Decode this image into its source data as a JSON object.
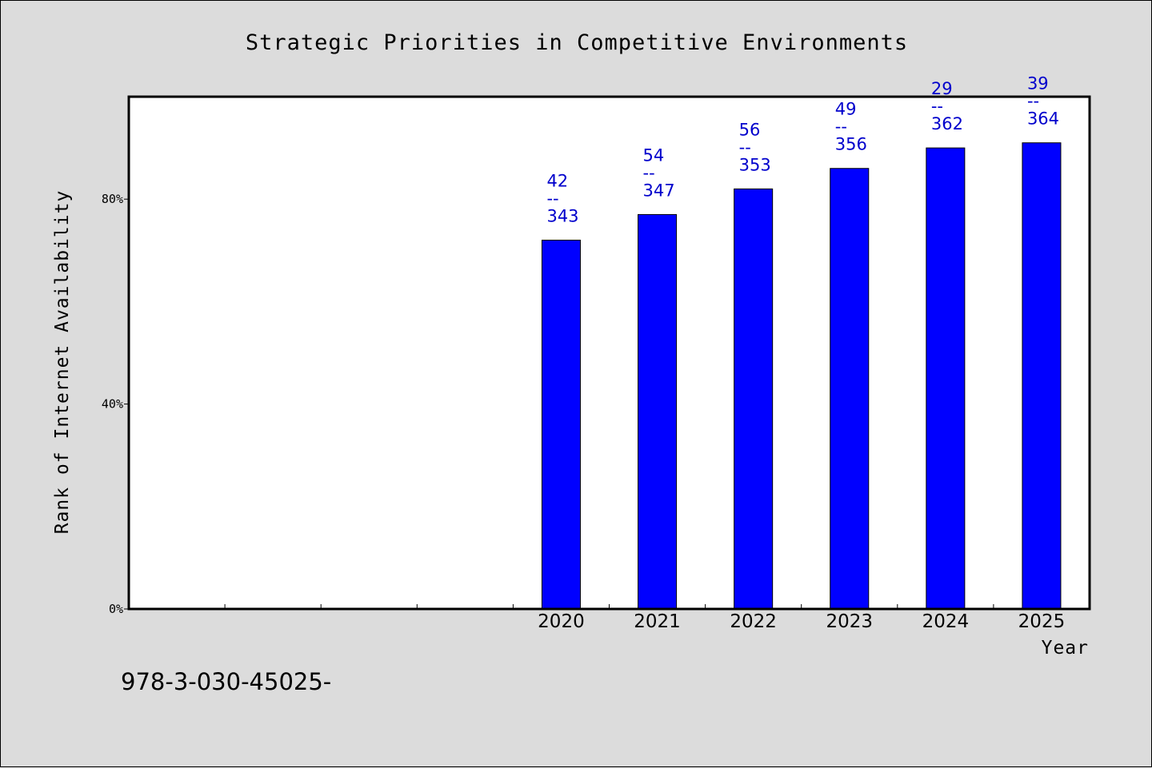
{
  "chart_data": {
    "type": "bar",
    "title": "Strategic Priorities in Competitive Environments",
    "xlabel": "Year",
    "ylabel": "Rank of Internet Availability",
    "categories": [
      "",
      "",
      "",
      "",
      "2020",
      "2021",
      "2022",
      "2023",
      "2024",
      "2025"
    ],
    "values": [
      null,
      null,
      null,
      null,
      72,
      77,
      82,
      86,
      90,
      91
    ],
    "data_labels": [
      null,
      null,
      null,
      null,
      {
        "top": "42",
        "mid": "--",
        "bottom": "343"
      },
      {
        "top": "54",
        "mid": "--",
        "bottom": "347"
      },
      {
        "top": "56",
        "mid": "--",
        "bottom": "353"
      },
      {
        "top": "49",
        "mid": "--",
        "bottom": "356"
      },
      {
        "top": "29",
        "mid": "--",
        "bottom": "362"
      },
      {
        "top": "39",
        "mid": "--",
        "bottom": "364"
      }
    ],
    "ylim": [
      0,
      100
    ],
    "yticks": [
      {
        "value": 0,
        "label": "0%"
      },
      {
        "value": 40,
        "label": "40%"
      },
      {
        "value": 80,
        "label": "80%"
      }
    ],
    "grid": false,
    "bar_color": "#0000ff",
    "label_color": "#0000cc"
  },
  "footer": "978-3-030-45025-"
}
